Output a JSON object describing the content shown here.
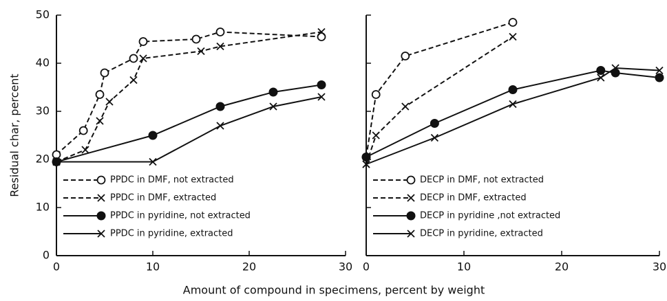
{
  "chart_data": [
    {
      "type": "line",
      "y_label": "Residual char, percent",
      "x_label": "Amount of compound in specimens, percent by weight",
      "xlim": [
        0,
        30
      ],
      "xticks": [
        0,
        10,
        20,
        30
      ],
      "ylim": [
        0,
        50
      ],
      "yticks": [
        0,
        10,
        20,
        30,
        40,
        50
      ],
      "ytick_labels": true,
      "legend": "lower left",
      "series": [
        {
          "name": "PPDC in DMF, not extracted",
          "color": "#111111",
          "dash": true,
          "marker": "circle-open",
          "x": [
            0,
            2.8,
            4.5,
            5,
            8,
            9,
            14.5,
            17,
            27.5
          ],
          "values": [
            21,
            26,
            33.5,
            38,
            41,
            44.5,
            45,
            46.5,
            45.5
          ]
        },
        {
          "name": "PPDC in DMF, extracted",
          "color": "#111111",
          "dash": true,
          "marker": "x",
          "x": [
            0,
            3,
            4.5,
            5.5,
            8,
            9,
            15,
            17,
            27.5
          ],
          "values": [
            19.5,
            22,
            28,
            32,
            36.5,
            41,
            42.5,
            43.5,
            46.5
          ]
        },
        {
          "name": "PPDC in pyridine, not extracted",
          "color": "#111111",
          "dash": false,
          "marker": "circle-filled",
          "x": [
            0,
            10,
            17,
            22.5,
            27.5
          ],
          "values": [
            19.5,
            25,
            31,
            34,
            35.5
          ]
        },
        {
          "name": "PPDC in pyridine, extracted",
          "color": "#111111",
          "dash": false,
          "marker": "x",
          "x": [
            0,
            10,
            17,
            22.5,
            27.5
          ],
          "values": [
            19.5,
            19.5,
            27,
            31,
            33
          ]
        }
      ]
    },
    {
      "type": "line",
      "xlim": [
        0,
        30
      ],
      "xticks": [
        0,
        10,
        20,
        30
      ],
      "ylim": [
        0,
        50
      ],
      "yticks": [
        0,
        10,
        20,
        30,
        40,
        50
      ],
      "ytick_labels": false,
      "legend": "lower left",
      "series": [
        {
          "name": "DECP in DMF, not extracted",
          "color": "#111111",
          "dash": true,
          "marker": "circle-open",
          "x": [
            0,
            1,
            4,
            15
          ],
          "values": [
            20.5,
            33.5,
            41.5,
            48.5
          ]
        },
        {
          "name": "DECP in DMF, extracted",
          "color": "#111111",
          "dash": true,
          "marker": "x",
          "x": [
            0,
            1,
            4,
            15
          ],
          "values": [
            19,
            25,
            31,
            45.5
          ]
        },
        {
          "name": "DECP in pyridine ,not extracted",
          "color": "#111111",
          "dash": false,
          "marker": "circle-filled",
          "x": [
            0,
            7,
            15,
            24,
            25.5,
            30
          ],
          "values": [
            20.5,
            27.5,
            34.5,
            38.5,
            38,
            37
          ]
        },
        {
          "name": "DECP in pyridine, extracted",
          "color": "#111111",
          "dash": false,
          "marker": "x",
          "x": [
            0,
            7,
            15,
            24,
            25.5,
            30
          ],
          "values": [
            19,
            24.5,
            31.5,
            37,
            39,
            38.5
          ]
        }
      ]
    }
  ]
}
